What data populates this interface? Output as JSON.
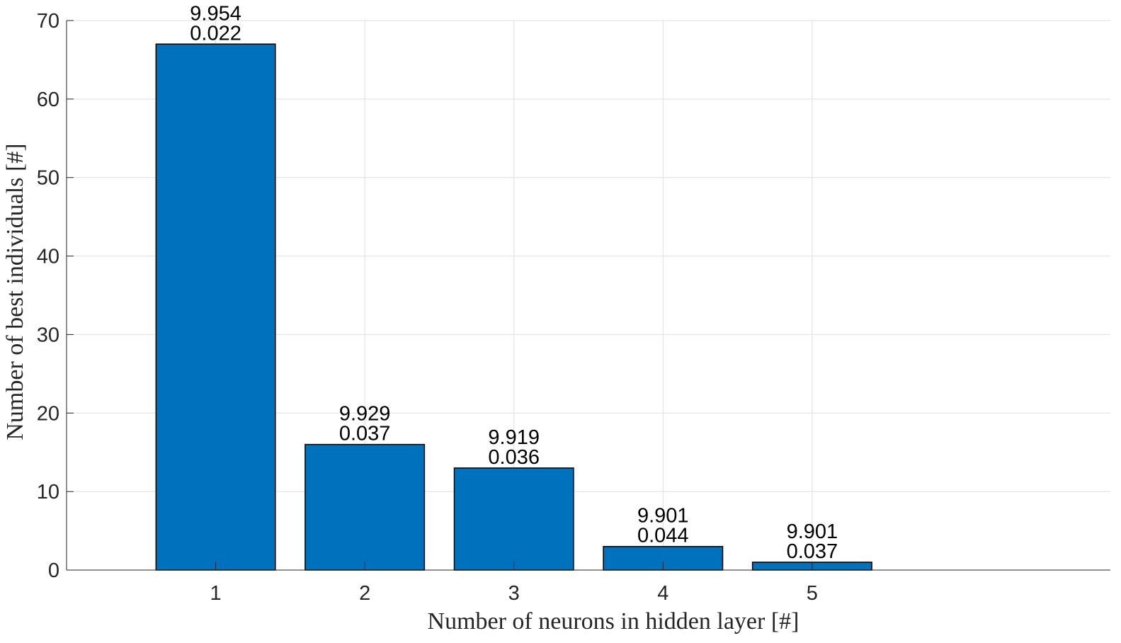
{
  "chart_data": {
    "type": "bar",
    "categories": [
      "1",
      "2",
      "3",
      "4",
      "5"
    ],
    "values": [
      67,
      16,
      13,
      3,
      1
    ],
    "bar_labels": [
      [
        "9.954",
        "0.022"
      ],
      [
        "9.929",
        "0.037"
      ],
      [
        "9.919",
        "0.036"
      ],
      [
        "9.901",
        "0.044"
      ],
      [
        "9.901",
        "0.037"
      ]
    ],
    "xlabel": "Number of neurons in hidden layer [#]",
    "ylabel": "Number of best individuals [#]",
    "xlim": [
      0,
      7
    ],
    "ylim": [
      0,
      70
    ],
    "yticks": [
      0,
      10,
      20,
      30,
      40,
      50,
      60,
      70
    ],
    "grid": true,
    "bar_color": "#0072BD"
  }
}
